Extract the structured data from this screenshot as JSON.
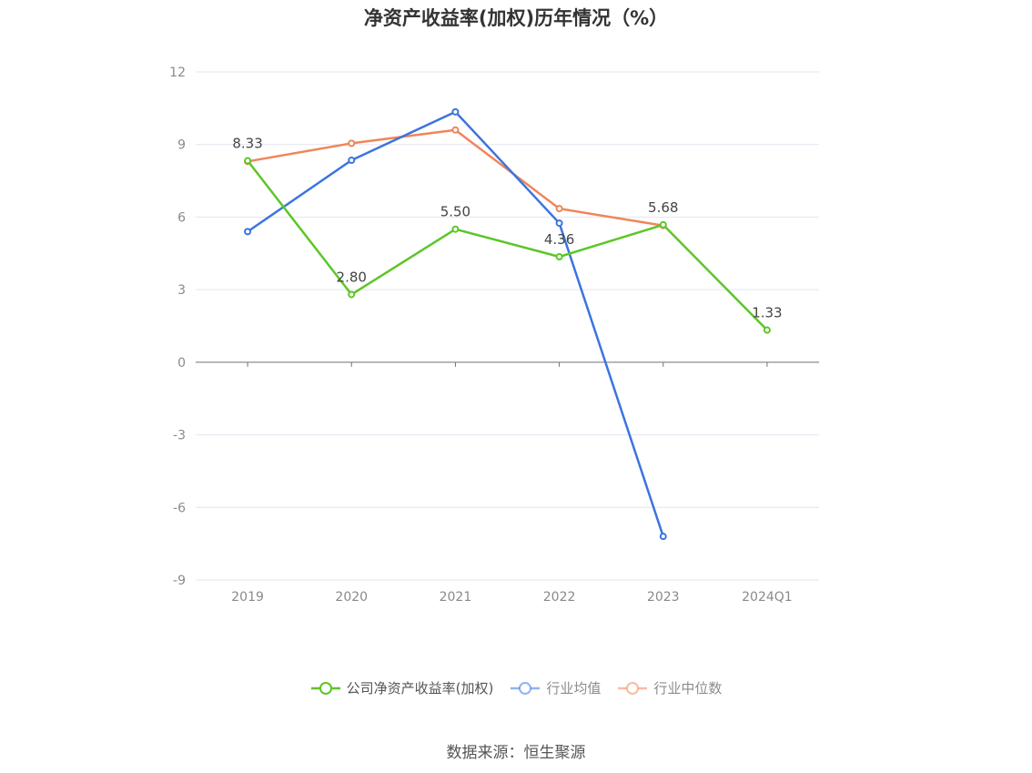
{
  "chart_data": {
    "type": "line",
    "title": "净资产收益率(加权)历年情况（%）",
    "categories": [
      "2019",
      "2020",
      "2021",
      "2022",
      "2023",
      "2024Q1"
    ],
    "ylim": [
      -9,
      12
    ],
    "yticks": [
      12,
      9,
      6,
      3,
      0,
      -3,
      -6,
      -9
    ],
    "grid": true,
    "legend_position": "bottom",
    "series": [
      {
        "name": "公司净资产收益率(加权)",
        "color": "#5cc627",
        "values": [
          8.33,
          2.8,
          5.5,
          4.36,
          5.68,
          1.33
        ],
        "labels": [
          "8.33",
          "2.80",
          "5.50",
          "4.36",
          "5.68",
          "1.33"
        ]
      },
      {
        "name": "行业均值",
        "color": "#3b74df",
        "values": [
          5.4,
          8.35,
          10.35,
          5.75,
          -7.2,
          null
        ]
      },
      {
        "name": "行业中位数",
        "color": "#f0855a",
        "values": [
          8.3,
          9.05,
          9.6,
          6.35,
          5.65,
          null
        ]
      }
    ]
  },
  "source": "数据来源：恒生聚源"
}
